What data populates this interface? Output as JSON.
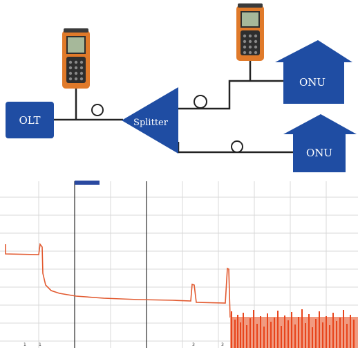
{
  "diagram": {
    "nodes": {
      "olt": {
        "label": "OLT"
      },
      "splitter": {
        "label": "Splitter"
      },
      "onu_top": {
        "label": "ONU"
      },
      "onu_bottom": {
        "label": "ONU"
      }
    },
    "colors": {
      "blue": "#1f4da3",
      "line": "#222222",
      "otdr_body": "#e07a2a",
      "otdr_screen": "#a6b89a"
    },
    "icons": [
      "otdr-device-icon",
      "otdr-device-icon"
    ]
  },
  "trace": {
    "cursor_a_label": "",
    "cursor_b_label": "",
    "bottom_marks": [
      "1",
      "1",
      "3",
      "3"
    ],
    "colors": {
      "trace": "#e25a30",
      "grid": "#d9d9d9",
      "cursor": "#2b2b2b",
      "cursor_tag": "#2a49a0"
    }
  }
}
